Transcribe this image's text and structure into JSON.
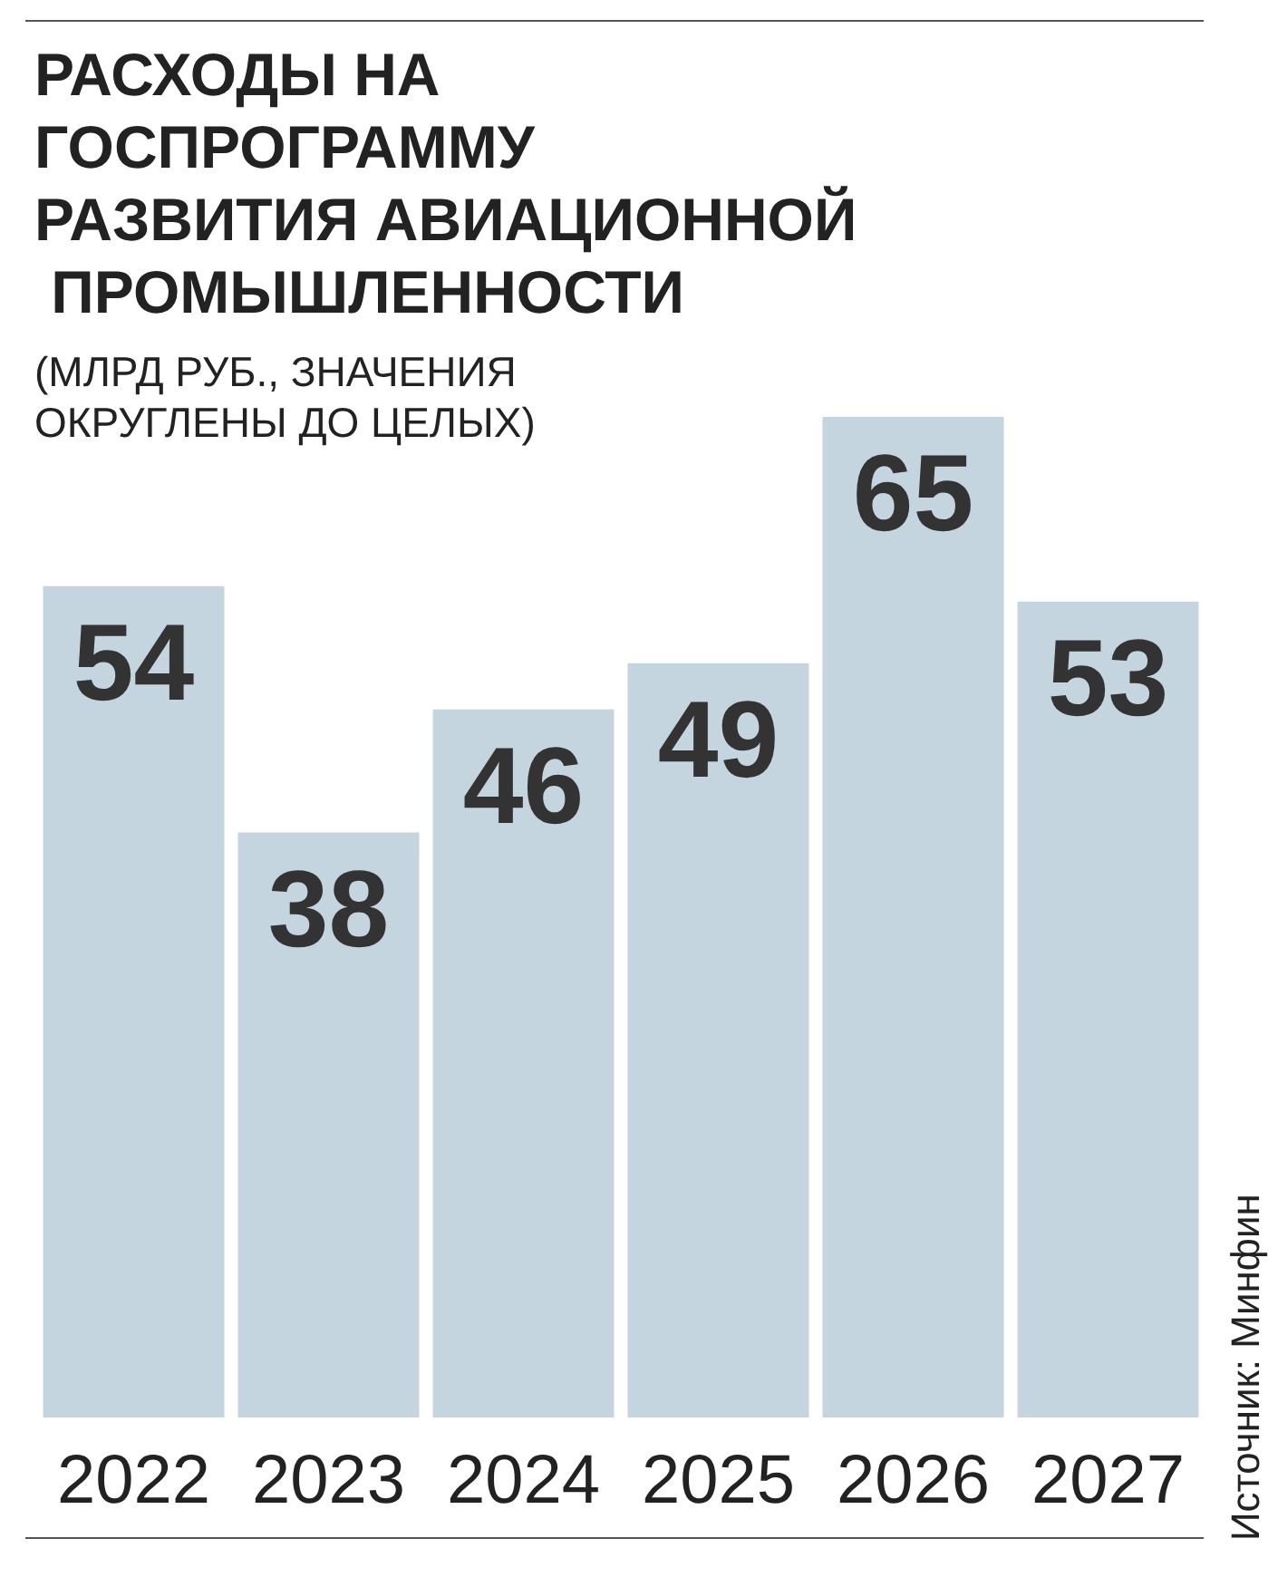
{
  "chart_data": {
    "type": "bar",
    "title": "РАСХОДЫ НА ГОСПРОГРАММУ РАЗВИТИЯ АВИАЦИОННОЙ ПРОМЫШЛЕННОСТИ",
    "subtitle": "(МЛРД РУБ., ЗНАЧЕНИЯ ОКРУГЛЕНЫ ДО ЦЕЛЫХ)",
    "categories": [
      "2022",
      "2023",
      "2024",
      "2025",
      "2026",
      "2027"
    ],
    "values": [
      54,
      38,
      46,
      49,
      65,
      53
    ],
    "color": "#c5d5df",
    "data_labels": true,
    "annotations": [
      "Источник: Минфин"
    ]
  }
}
